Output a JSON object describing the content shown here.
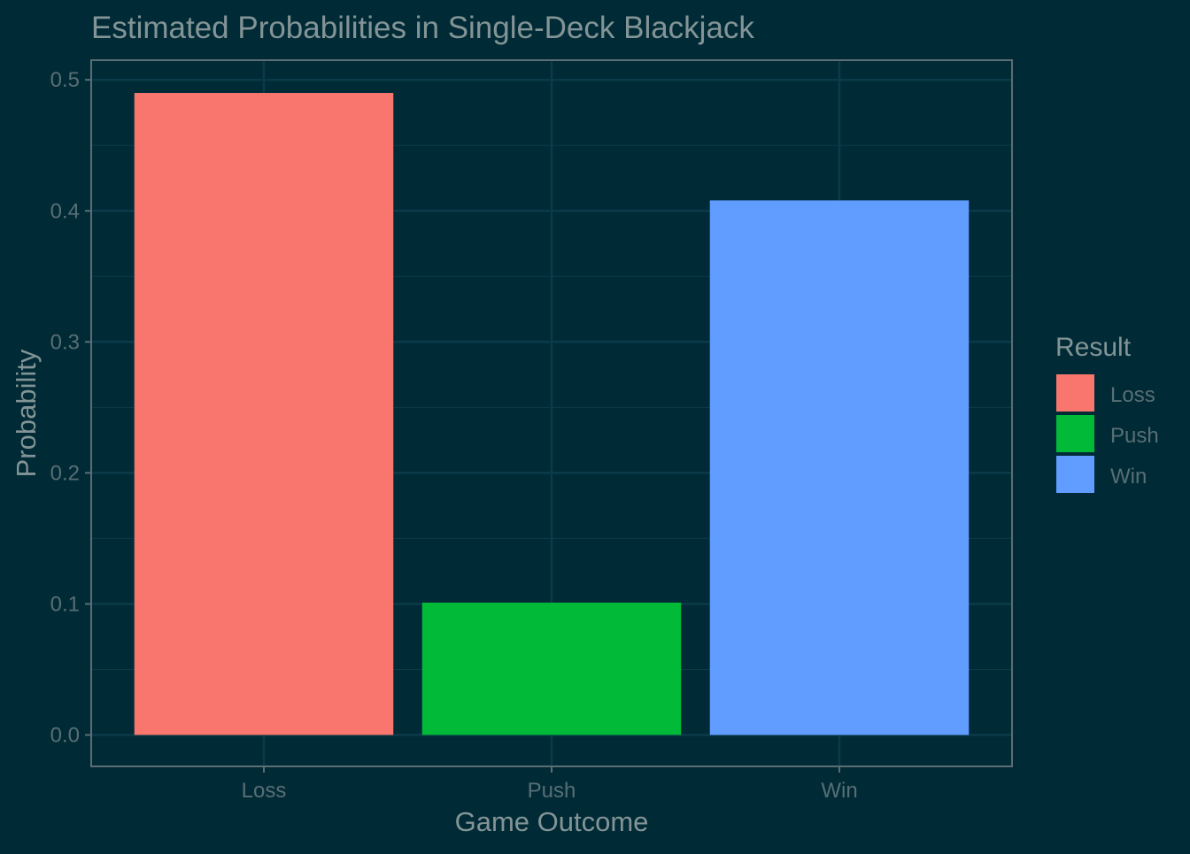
{
  "chart_data": {
    "type": "bar",
    "title": "Estimated Probabilities in Single-Deck Blackjack",
    "xlabel": "Game Outcome",
    "ylabel": "Probability",
    "categories": [
      "Loss",
      "Push",
      "Win"
    ],
    "values": [
      0.49,
      0.101,
      0.408
    ],
    "colors": [
      "#f8766d",
      "#00ba38",
      "#619cff"
    ],
    "ylim": [
      -0.024,
      0.515
    ],
    "yticks": [
      0.0,
      0.1,
      0.2,
      0.3,
      0.4,
      0.5
    ],
    "ytick_labels": [
      "0.0",
      "0.1",
      "0.2",
      "0.3",
      "0.4",
      "0.5"
    ],
    "grid": true,
    "legend": {
      "title": "Result",
      "placement": "right",
      "entries": [
        "Loss",
        "Push",
        "Win"
      ]
    }
  },
  "theme": {
    "background": "#002b36",
    "grid_color": "#0b3a4a",
    "axis_color": "#5b6e74",
    "tick_text_color": "#586e75",
    "title_color": "#839496",
    "label_color": "#839496"
  }
}
